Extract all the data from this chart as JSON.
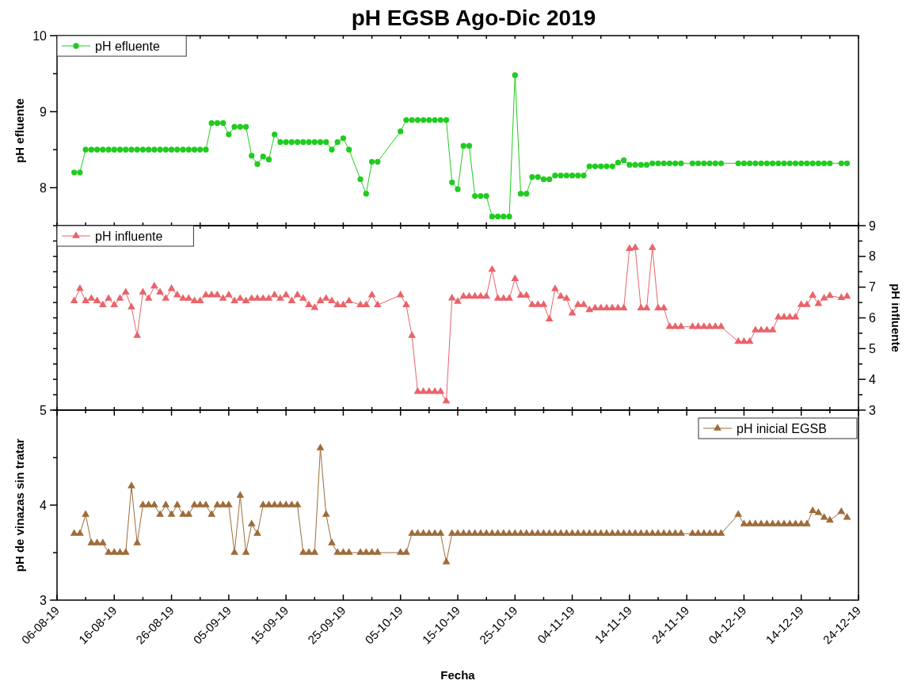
{
  "chart_data": [
    {
      "type": "line",
      "title": "pH EGSB Ago-Dic 2019",
      "ylabel": "pH efluente",
      "legend": "top left",
      "marker": "circle",
      "tick_labels": "y",
      "xlim": [
        "2019-08-06",
        "2019-12-24"
      ],
      "xticks": [
        {
          "value": "2019-08-06",
          "label": null
        },
        {
          "value": "2019-08-11",
          "label": null
        },
        {
          "value": "2019-08-16",
          "label": null
        },
        {
          "value": "2019-08-21",
          "label": null
        },
        {
          "value": "2019-08-26",
          "label": null
        },
        {
          "value": "2019-08-31",
          "label": null
        },
        {
          "value": "2019-09-05",
          "label": null
        },
        {
          "value": "2019-09-10",
          "label": null
        },
        {
          "value": "2019-09-15",
          "label": null
        },
        {
          "value": "2019-09-20",
          "label": null
        },
        {
          "value": "2019-09-25",
          "label": null
        },
        {
          "value": "2019-09-30",
          "label": null
        },
        {
          "value": "2019-10-05",
          "label": null
        },
        {
          "value": "2019-10-10",
          "label": null
        },
        {
          "value": "2019-10-15",
          "label": null
        },
        {
          "value": "2019-10-20",
          "label": null
        },
        {
          "value": "2019-10-25",
          "label": null
        },
        {
          "value": "2019-10-30",
          "label": null
        },
        {
          "value": "2019-11-04",
          "label": null
        },
        {
          "value": "2019-11-09",
          "label": null
        },
        {
          "value": "2019-11-14",
          "label": null
        },
        {
          "value": "2019-11-19",
          "label": null
        },
        {
          "value": "2019-11-24",
          "label": null
        },
        {
          "value": "2019-11-29",
          "label": null
        },
        {
          "value": "2019-12-04",
          "label": null
        },
        {
          "value": "2019-12-09",
          "label": null
        },
        {
          "value": "2019-12-14",
          "label": null
        },
        {
          "value": "2019-12-19",
          "label": null
        },
        {
          "value": "2019-12-24",
          "label": null
        }
      ],
      "ylim": [
        7.5,
        10
      ],
      "yticks": [
        8,
        {
          "value": 8.5,
          "label": null
        },
        9,
        {
          "value": 9.5,
          "label": null
        },
        10
      ],
      "x": [
        "2019-08-09",
        "2019-08-10",
        "2019-08-11",
        "2019-08-12",
        "2019-08-13",
        "2019-08-14",
        "2019-08-15",
        "2019-08-16",
        "2019-08-17",
        "2019-08-18",
        "2019-08-19",
        "2019-08-20",
        "2019-08-21",
        "2019-08-22",
        "2019-08-23",
        "2019-08-24",
        "2019-08-25",
        "2019-08-26",
        "2019-08-27",
        "2019-08-28",
        "2019-08-29",
        "2019-08-30",
        "2019-08-31",
        "2019-09-01",
        "2019-09-02",
        "2019-09-03",
        "2019-09-04",
        "2019-09-05",
        "2019-09-06",
        "2019-09-07",
        "2019-09-08",
        "2019-09-09",
        "2019-09-10",
        "2019-09-11",
        "2019-09-12",
        "2019-09-13",
        "2019-09-14",
        "2019-09-15",
        "2019-09-16",
        "2019-09-17",
        "2019-09-18",
        "2019-09-19",
        "2019-09-20",
        "2019-09-21",
        "2019-09-22",
        "2019-09-23",
        "2019-09-24",
        "2019-09-25",
        "2019-09-26",
        "2019-09-28",
        "2019-09-29",
        "2019-09-30",
        "2019-10-01",
        "2019-10-05",
        "2019-10-06",
        "2019-10-07",
        "2019-10-08",
        "2019-10-09",
        "2019-10-10",
        "2019-10-11",
        "2019-10-12",
        "2019-10-13",
        "2019-10-14",
        "2019-10-15",
        "2019-10-16",
        "2019-10-17",
        "2019-10-18",
        "2019-10-19",
        "2019-10-20",
        "2019-10-21",
        "2019-10-22",
        "2019-10-23",
        "2019-10-24",
        "2019-10-25",
        "2019-10-26",
        "2019-10-27",
        "2019-10-28",
        "2019-10-29",
        "2019-10-30",
        "2019-10-31",
        "2019-11-01",
        "2019-11-02",
        "2019-11-03",
        "2019-11-04",
        "2019-11-05",
        "2019-11-06",
        "2019-11-07",
        "2019-11-08",
        "2019-11-09",
        "2019-11-10",
        "2019-11-11",
        "2019-11-12",
        "2019-11-13",
        "2019-11-14",
        "2019-11-15",
        "2019-11-16",
        "2019-11-17",
        "2019-11-18",
        "2019-11-19",
        "2019-11-20",
        "2019-11-21",
        "2019-11-22",
        "2019-11-23",
        "2019-11-25",
        "2019-11-26",
        "2019-11-27",
        "2019-11-28",
        "2019-11-29",
        "2019-11-30",
        "2019-12-03",
        "2019-12-04",
        "2019-12-05",
        "2019-12-06",
        "2019-12-07",
        "2019-12-08",
        "2019-12-09",
        "2019-12-10",
        "2019-12-11",
        "2019-12-12",
        "2019-12-13",
        "2019-12-14",
        "2019-12-15",
        "2019-12-16",
        "2019-12-17",
        "2019-12-18",
        "2019-12-19",
        "2019-12-21",
        "2019-12-22"
      ],
      "series": [
        {
          "name": "pH efluente",
          "color": "#1fcc1f",
          "values": [
            8.2,
            8.2,
            8.5,
            8.5,
            8.5,
            8.5,
            8.5,
            8.5,
            8.5,
            8.5,
            8.5,
            8.5,
            8.5,
            8.5,
            8.5,
            8.5,
            8.5,
            8.5,
            8.5,
            8.5,
            8.5,
            8.5,
            8.5,
            8.5,
            8.85,
            8.85,
            8.85,
            8.7,
            8.8,
            8.8,
            8.8,
            8.42,
            8.31,
            8.41,
            8.37,
            8.7,
            8.6,
            8.6,
            8.6,
            8.6,
            8.6,
            8.6,
            8.6,
            8.6,
            8.6,
            8.5,
            8.6,
            8.65,
            8.5,
            8.11,
            7.92,
            8.34,
            8.34,
            8.74,
            8.89,
            8.89,
            8.89,
            8.89,
            8.89,
            8.89,
            8.89,
            8.89,
            8.07,
            7.98,
            8.55,
            8.55,
            7.89,
            7.89,
            7.89,
            7.62,
            7.62,
            7.62,
            7.62,
            9.48,
            7.92,
            7.92,
            8.14,
            8.14,
            8.11,
            8.11,
            8.16,
            8.16,
            8.16,
            8.16,
            8.16,
            8.16,
            8.28,
            8.28,
            8.28,
            8.28,
            8.28,
            8.33,
            8.36,
            8.3,
            8.3,
            8.3,
            8.3,
            8.32,
            8.32,
            8.32,
            8.32,
            8.32,
            8.32,
            8.32,
            8.32,
            8.32,
            8.32,
            8.32,
            8.32,
            8.32,
            8.32,
            8.32,
            8.32,
            8.32,
            8.32,
            8.32,
            8.32,
            8.32,
            8.32,
            8.32,
            8.32,
            8.32,
            8.32,
            8.32,
            8.32,
            8.32,
            8.32,
            8.32
          ]
        }
      ]
    },
    {
      "type": "line",
      "ylabel": "pH influente",
      "legend": "top left",
      "marker": "triangle",
      "tick_labels": "y",
      "xlim": [
        "2019-08-06",
        "2019-12-24"
      ],
      "xticks": [
        {
          "value": "2019-08-06",
          "label": null
        },
        {
          "value": "2019-08-11",
          "label": null
        },
        {
          "value": "2019-08-16",
          "label": null
        },
        {
          "value": "2019-08-21",
          "label": null
        },
        {
          "value": "2019-08-26",
          "label": null
        },
        {
          "value": "2019-08-31",
          "label": null
        },
        {
          "value": "2019-09-05",
          "label": null
        },
        {
          "value": "2019-09-10",
          "label": null
        },
        {
          "value": "2019-09-15",
          "label": null
        },
        {
          "value": "2019-09-20",
          "label": null
        },
        {
          "value": "2019-09-25",
          "label": null
        },
        {
          "value": "2019-09-30",
          "label": null
        },
        {
          "value": "2019-10-05",
          "label": null
        },
        {
          "value": "2019-10-10",
          "label": null
        },
        {
          "value": "2019-10-15",
          "label": null
        },
        {
          "value": "2019-10-20",
          "label": null
        },
        {
          "value": "2019-10-25",
          "label": null
        },
        {
          "value": "2019-10-30",
          "label": null
        },
        {
          "value": "2019-11-04",
          "label": null
        },
        {
          "value": "2019-11-09",
          "label": null
        },
        {
          "value": "2019-11-14",
          "label": null
        },
        {
          "value": "2019-11-19",
          "label": null
        },
        {
          "value": "2019-11-24",
          "label": null
        },
        {
          "value": "2019-11-29",
          "label": null
        },
        {
          "value": "2019-12-04",
          "label": null
        },
        {
          "value": "2019-12-09",
          "label": null
        },
        {
          "value": "2019-12-14",
          "label": null
        },
        {
          "value": "2019-12-19",
          "label": null
        },
        {
          "value": "2019-12-24",
          "label": null
        }
      ],
      "ylim": [
        3,
        9
      ],
      "yticks": [
        3,
        {
          "value": 3.5,
          "label": null
        },
        4,
        {
          "value": 4.5,
          "label": null
        },
        5,
        {
          "value": 5.5,
          "label": null
        },
        6,
        {
          "value": 6.5,
          "label": null
        },
        7,
        {
          "value": 7.5,
          "label": null
        },
        8,
        {
          "value": 8.5,
          "label": null
        },
        9
      ],
      "x": [
        "2019-08-09",
        "2019-08-10",
        "2019-08-11",
        "2019-08-12",
        "2019-08-13",
        "2019-08-14",
        "2019-08-15",
        "2019-08-16",
        "2019-08-17",
        "2019-08-18",
        "2019-08-19",
        "2019-08-20",
        "2019-08-21",
        "2019-08-22",
        "2019-08-23",
        "2019-08-24",
        "2019-08-25",
        "2019-08-26",
        "2019-08-27",
        "2019-08-28",
        "2019-08-29",
        "2019-08-30",
        "2019-08-31",
        "2019-09-01",
        "2019-09-02",
        "2019-09-03",
        "2019-09-04",
        "2019-09-05",
        "2019-09-06",
        "2019-09-07",
        "2019-09-08",
        "2019-09-09",
        "2019-09-10",
        "2019-09-11",
        "2019-09-12",
        "2019-09-13",
        "2019-09-14",
        "2019-09-15",
        "2019-09-16",
        "2019-09-17",
        "2019-09-18",
        "2019-09-19",
        "2019-09-20",
        "2019-09-21",
        "2019-09-22",
        "2019-09-23",
        "2019-09-24",
        "2019-09-25",
        "2019-09-26",
        "2019-09-28",
        "2019-09-29",
        "2019-09-30",
        "2019-10-01",
        "2019-10-05",
        "2019-10-06",
        "2019-10-07",
        "2019-10-08",
        "2019-10-09",
        "2019-10-10",
        "2019-10-11",
        "2019-10-12",
        "2019-10-13",
        "2019-10-14",
        "2019-10-15",
        "2019-10-16",
        "2019-10-17",
        "2019-10-18",
        "2019-10-19",
        "2019-10-20",
        "2019-10-21",
        "2019-10-22",
        "2019-10-23",
        "2019-10-24",
        "2019-10-25",
        "2019-10-26",
        "2019-10-27",
        "2019-10-28",
        "2019-10-29",
        "2019-10-30",
        "2019-10-31",
        "2019-11-01",
        "2019-11-02",
        "2019-11-03",
        "2019-11-04",
        "2019-11-05",
        "2019-11-06",
        "2019-11-07",
        "2019-11-08",
        "2019-11-09",
        "2019-11-10",
        "2019-11-11",
        "2019-11-12",
        "2019-11-13",
        "2019-11-14",
        "2019-11-15",
        "2019-11-16",
        "2019-11-17",
        "2019-11-18",
        "2019-11-19",
        "2019-11-20",
        "2019-11-21",
        "2019-11-22",
        "2019-11-23",
        "2019-11-25",
        "2019-11-26",
        "2019-11-27",
        "2019-11-28",
        "2019-11-29",
        "2019-11-30",
        "2019-12-03",
        "2019-12-04",
        "2019-12-05",
        "2019-12-06",
        "2019-12-07",
        "2019-12-08",
        "2019-12-09",
        "2019-12-10",
        "2019-12-11",
        "2019-12-12",
        "2019-12-13",
        "2019-12-14",
        "2019-12-15",
        "2019-12-16",
        "2019-12-17",
        "2019-12-18",
        "2019-12-19",
        "2019-12-21",
        "2019-12-22"
      ],
      "series": [
        {
          "name": "pH influente",
          "color": "#e8646a",
          "values": [
            6.55,
            6.95,
            6.55,
            6.63,
            6.55,
            6.42,
            6.63,
            6.42,
            6.63,
            6.83,
            6.35,
            5.42,
            6.83,
            6.63,
            7.03,
            6.83,
            6.63,
            6.95,
            6.74,
            6.63,
            6.63,
            6.55,
            6.55,
            6.74,
            6.74,
            6.74,
            6.63,
            6.74,
            6.55,
            6.63,
            6.55,
            6.63,
            6.63,
            6.63,
            6.63,
            6.74,
            6.63,
            6.74,
            6.55,
            6.74,
            6.63,
            6.42,
            6.33,
            6.55,
            6.63,
            6.55,
            6.42,
            6.42,
            6.55,
            6.42,
            6.42,
            6.74,
            6.42,
            6.74,
            6.42,
            5.42,
            3.6,
            3.6,
            3.6,
            3.6,
            3.6,
            3.29,
            6.64,
            6.53,
            6.7,
            6.7,
            6.7,
            6.7,
            6.7,
            7.57,
            6.63,
            6.63,
            6.63,
            7.27,
            6.73,
            6.73,
            6.43,
            6.43,
            6.43,
            5.96,
            6.94,
            6.7,
            6.63,
            6.15,
            6.43,
            6.43,
            6.26,
            6.32,
            6.32,
            6.32,
            6.32,
            6.32,
            6.32,
            8.25,
            8.28,
            6.32,
            6.32,
            8.28,
            6.32,
            6.32,
            5.71,
            5.71,
            5.71,
            5.71,
            5.71,
            5.71,
            5.71,
            5.71,
            5.71,
            5.23,
            5.23,
            5.23,
            5.6,
            5.6,
            5.6,
            5.6,
            6.02,
            6.02,
            6.02,
            6.02,
            6.43,
            6.43,
            6.73,
            6.46,
            6.64,
            6.72,
            6.65,
            6.7
          ]
        }
      ]
    },
    {
      "type": "line",
      "xlabel": "Fecha",
      "ylabel": "pH de vinazas sin tratar",
      "legend": "top right",
      "marker": "triangle",
      "xlim": [
        "2019-08-06",
        "2019-12-24"
      ],
      "xticks": [
        {
          "value": "2019-08-06",
          "label": "06-08-19"
        },
        {
          "value": "2019-08-11",
          "label": null
        },
        {
          "value": "2019-08-16",
          "label": "16-08-19"
        },
        {
          "value": "2019-08-21",
          "label": null
        },
        {
          "value": "2019-08-26",
          "label": "26-08-19"
        },
        {
          "value": "2019-08-31",
          "label": null
        },
        {
          "value": "2019-09-05",
          "label": "05-09-19"
        },
        {
          "value": "2019-09-10",
          "label": null
        },
        {
          "value": "2019-09-15",
          "label": "15-09-19"
        },
        {
          "value": "2019-09-20",
          "label": null
        },
        {
          "value": "2019-09-25",
          "label": "25-09-19"
        },
        {
          "value": "2019-09-30",
          "label": null
        },
        {
          "value": "2019-10-05",
          "label": "05-10-19"
        },
        {
          "value": "2019-10-10",
          "label": null
        },
        {
          "value": "2019-10-15",
          "label": "15-10-19"
        },
        {
          "value": "2019-10-20",
          "label": null
        },
        {
          "value": "2019-10-25",
          "label": "25-10-19"
        },
        {
          "value": "2019-10-30",
          "label": null
        },
        {
          "value": "2019-11-04",
          "label": "04-11-19"
        },
        {
          "value": "2019-11-09",
          "label": null
        },
        {
          "value": "2019-11-14",
          "label": "14-11-19"
        },
        {
          "value": "2019-11-19",
          "label": null
        },
        {
          "value": "2019-11-24",
          "label": "24-11-19"
        },
        {
          "value": "2019-11-29",
          "label": null
        },
        {
          "value": "2019-12-04",
          "label": "04-12-19"
        },
        {
          "value": "2019-12-09",
          "label": null
        },
        {
          "value": "2019-12-14",
          "label": "14-12-19"
        },
        {
          "value": "2019-12-19",
          "label": null
        },
        {
          "value": "2019-12-24",
          "label": "24-12-19"
        }
      ],
      "ylim": [
        3,
        5
      ],
      "yticks": [
        3,
        {
          "value": 3.5,
          "label": null
        },
        4,
        {
          "value": 4.5,
          "label": null
        },
        5
      ],
      "x": [
        "2019-08-09",
        "2019-08-10",
        "2019-08-11",
        "2019-08-12",
        "2019-08-13",
        "2019-08-14",
        "2019-08-15",
        "2019-08-16",
        "2019-08-17",
        "2019-08-18",
        "2019-08-19",
        "2019-08-20",
        "2019-08-21",
        "2019-08-22",
        "2019-08-23",
        "2019-08-24",
        "2019-08-25",
        "2019-08-26",
        "2019-08-27",
        "2019-08-28",
        "2019-08-29",
        "2019-08-30",
        "2019-08-31",
        "2019-09-01",
        "2019-09-02",
        "2019-09-03",
        "2019-09-04",
        "2019-09-05",
        "2019-09-06",
        "2019-09-07",
        "2019-09-08",
        "2019-09-09",
        "2019-09-10",
        "2019-09-11",
        "2019-09-12",
        "2019-09-13",
        "2019-09-14",
        "2019-09-15",
        "2019-09-16",
        "2019-09-17",
        "2019-09-18",
        "2019-09-19",
        "2019-09-20",
        "2019-09-21",
        "2019-09-22",
        "2019-09-23",
        "2019-09-24",
        "2019-09-25",
        "2019-09-26",
        "2019-09-28",
        "2019-09-29",
        "2019-09-30",
        "2019-10-01",
        "2019-10-05",
        "2019-10-06",
        "2019-10-07",
        "2019-10-08",
        "2019-10-09",
        "2019-10-10",
        "2019-10-11",
        "2019-10-12",
        "2019-10-13",
        "2019-10-14",
        "2019-10-15",
        "2019-10-16",
        "2019-10-17",
        "2019-10-18",
        "2019-10-19",
        "2019-10-20",
        "2019-10-21",
        "2019-10-22",
        "2019-10-23",
        "2019-10-24",
        "2019-10-25",
        "2019-10-26",
        "2019-10-27",
        "2019-10-28",
        "2019-10-29",
        "2019-10-30",
        "2019-10-31",
        "2019-11-01",
        "2019-11-02",
        "2019-11-03",
        "2019-11-04",
        "2019-11-05",
        "2019-11-06",
        "2019-11-07",
        "2019-11-08",
        "2019-11-09",
        "2019-11-10",
        "2019-11-11",
        "2019-11-12",
        "2019-11-13",
        "2019-11-14",
        "2019-11-15",
        "2019-11-16",
        "2019-11-17",
        "2019-11-18",
        "2019-11-19",
        "2019-11-20",
        "2019-11-21",
        "2019-11-22",
        "2019-11-23",
        "2019-11-25",
        "2019-11-26",
        "2019-11-27",
        "2019-11-28",
        "2019-11-29",
        "2019-11-30",
        "2019-12-03",
        "2019-12-04",
        "2019-12-05",
        "2019-12-06",
        "2019-12-07",
        "2019-12-08",
        "2019-12-09",
        "2019-12-10",
        "2019-12-11",
        "2019-12-12",
        "2019-12-13",
        "2019-12-14",
        "2019-12-15",
        "2019-12-16",
        "2019-12-17",
        "2019-12-18",
        "2019-12-19",
        "2019-12-21",
        "2019-12-22"
      ],
      "series": [
        {
          "name": "pH inicial EGSB",
          "color": "#9e6b3a",
          "values": [
            3.7,
            3.7,
            3.9,
            3.6,
            3.6,
            3.6,
            3.5,
            3.5,
            3.5,
            3.5,
            4.2,
            3.6,
            4.0,
            4.0,
            4.0,
            3.9,
            4.0,
            3.9,
            4.0,
            3.9,
            3.9,
            4.0,
            4.0,
            4.0,
            3.9,
            4.0,
            4.0,
            4.0,
            3.5,
            4.1,
            3.5,
            3.8,
            3.7,
            4.0,
            4.0,
            4.0,
            4.0,
            4.0,
            4.0,
            4.0,
            3.5,
            3.5,
            3.5,
            4.6,
            3.9,
            3.6,
            3.5,
            3.5,
            3.5,
            3.5,
            3.5,
            3.5,
            3.5,
            3.5,
            3.5,
            3.7,
            3.7,
            3.7,
            3.7,
            3.7,
            3.7,
            3.4,
            3.7,
            3.7,
            3.7,
            3.7,
            3.7,
            3.7,
            3.7,
            3.7,
            3.7,
            3.7,
            3.7,
            3.7,
            3.7,
            3.7,
            3.7,
            3.7,
            3.7,
            3.7,
            3.7,
            3.7,
            3.7,
            3.7,
            3.7,
            3.7,
            3.7,
            3.7,
            3.7,
            3.7,
            3.7,
            3.7,
            3.7,
            3.7,
            3.7,
            3.7,
            3.7,
            3.7,
            3.7,
            3.7,
            3.7,
            3.7,
            3.7,
            3.7,
            3.7,
            3.7,
            3.7,
            3.7,
            3.7,
            3.9,
            3.8,
            3.8,
            3.8,
            3.8,
            3.8,
            3.8,
            3.8,
            3.8,
            3.8,
            3.8,
            3.8,
            3.8,
            3.94,
            3.92,
            3.87,
            3.84,
            3.93,
            3.87
          ]
        }
      ]
    }
  ]
}
